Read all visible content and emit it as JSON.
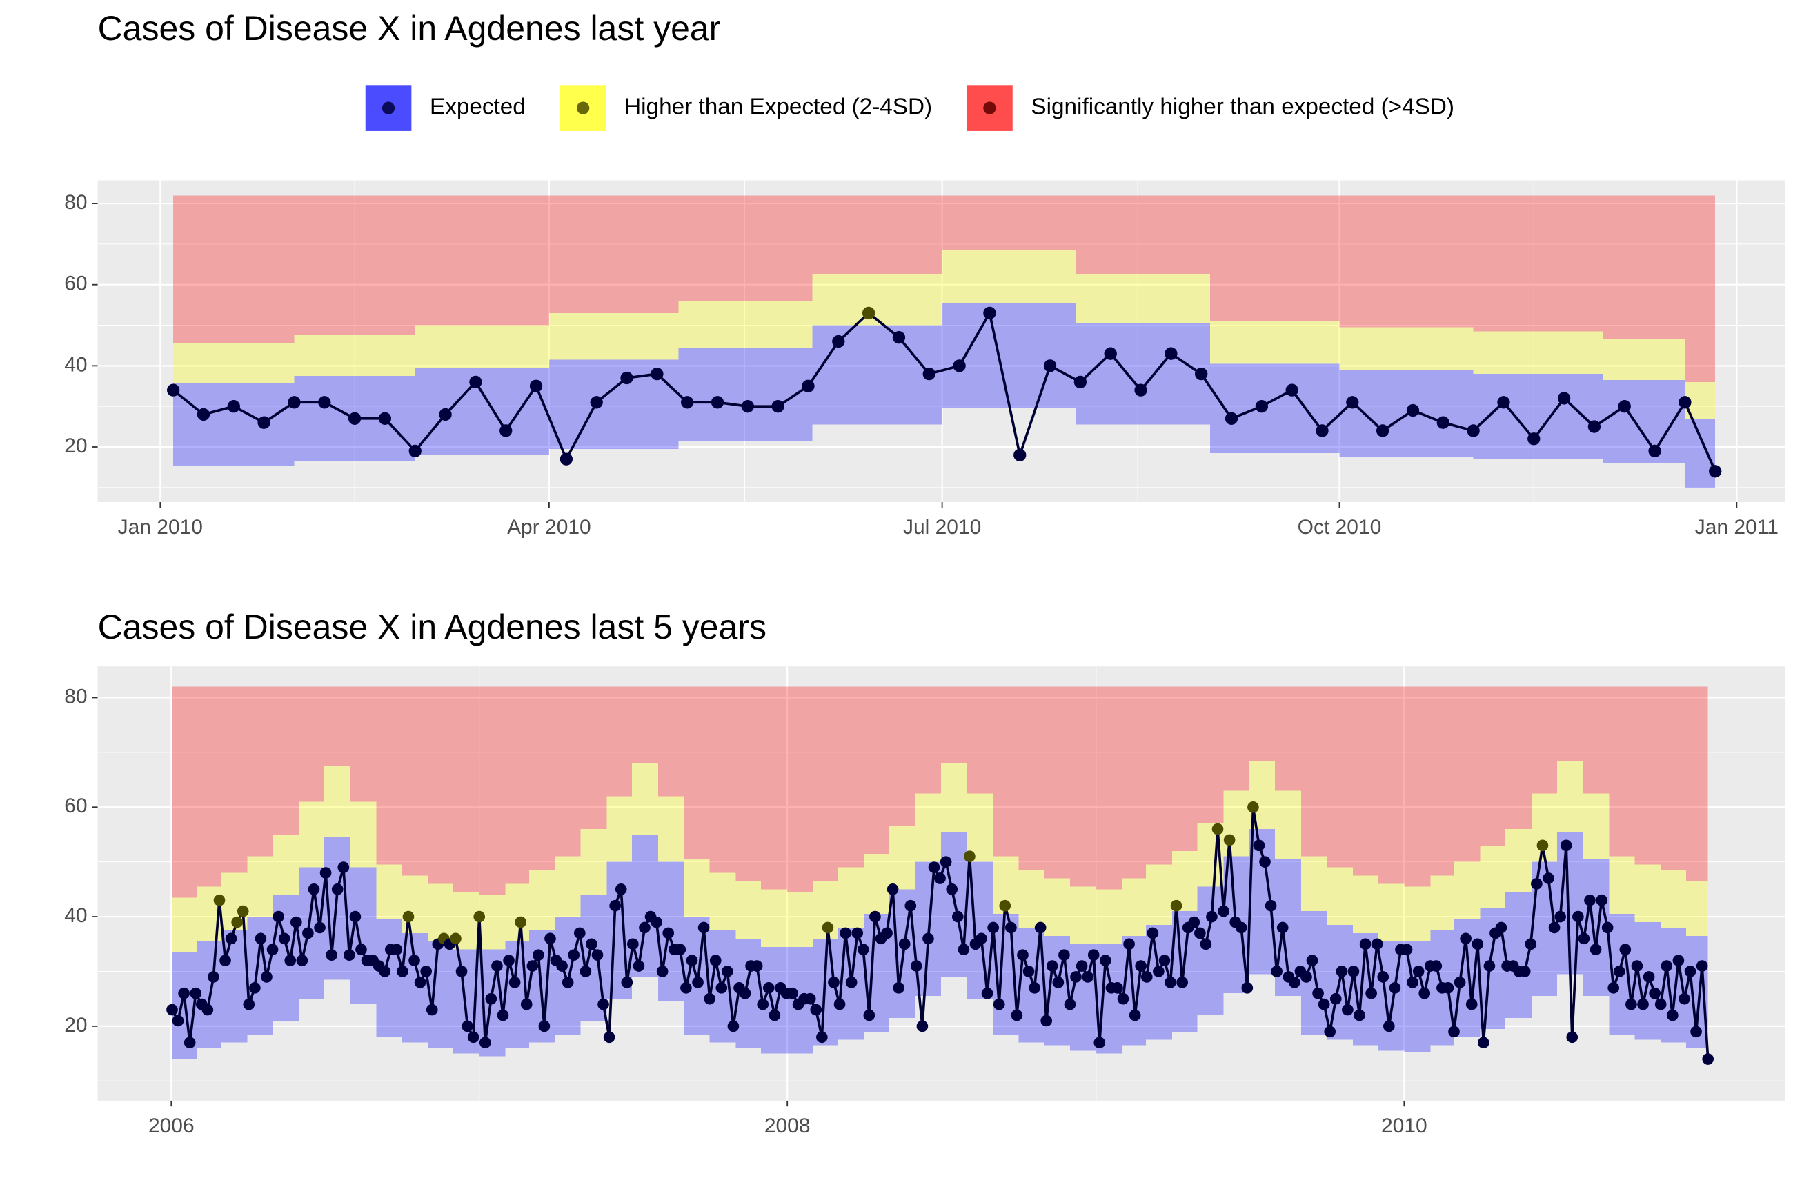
{
  "chart_data": [
    {
      "type": "line",
      "title": "Cases of Disease X in Agdenes last year",
      "legend": {
        "position": "top",
        "entries": [
          {
            "name": "Expected",
            "color": "#0000ff",
            "point_color": "#00003d"
          },
          {
            "name": "Higher than Expected (2-4SD)",
            "color": "#ffff00",
            "point_color": "#4d4d00"
          },
          {
            "name": "Significantly higher than expected (>4SD)",
            "color": "#ff0000",
            "point_color": "#5a0000"
          }
        ]
      },
      "x": [
        0,
        1,
        2,
        3,
        4,
        5,
        6,
        7,
        8,
        9,
        10,
        11,
        12,
        13,
        14,
        15,
        16,
        17,
        18,
        19,
        20,
        21,
        22,
        23,
        24,
        25,
        26,
        27,
        28,
        29,
        30,
        31,
        32,
        33,
        34,
        35,
        36,
        37,
        38,
        39,
        40,
        41,
        42,
        43,
        44,
        45,
        46,
        47,
        48,
        49,
        50,
        51
      ],
      "values": [
        34,
        28,
        30,
        26,
        31,
        31,
        27,
        27,
        19,
        28,
        36,
        24,
        35,
        17,
        31,
        37,
        38,
        31,
        31,
        30,
        30,
        35,
        46,
        53,
        47,
        38,
        40,
        53,
        18,
        40,
        36,
        43,
        34,
        43,
        38,
        27,
        30,
        34,
        24,
        31,
        24,
        29,
        26,
        24,
        31,
        22,
        32,
        25,
        30,
        19,
        31,
        14
      ],
      "line_color": "#000033",
      "band_opacity": 0.3,
      "bands": {
        "edges": [
          0,
          4.0,
          8.0,
          12.43,
          16.71,
          21.14,
          25.43,
          29.86,
          34.29,
          38.57,
          43.0,
          47.29,
          50,
          51
        ],
        "expected_low": [
          15.2,
          16.5,
          18,
          19.5,
          21.5,
          25.5,
          29.5,
          25.5,
          18.5,
          17.5,
          17,
          16,
          10
        ],
        "expected_high": [
          35.6,
          37.5,
          39.5,
          41.5,
          44.5,
          50,
          55.5,
          50.5,
          40.5,
          39,
          38,
          36.5,
          27
        ],
        "higher_high": [
          45.5,
          47.5,
          50,
          53,
          56,
          62.5,
          68.5,
          62.5,
          51,
          49.5,
          48.5,
          46.5,
          36
        ],
        "significant_high": 82
      },
      "xlim": [
        -2.5,
        53.3
      ],
      "xticks": [
        {
          "value": -0.43,
          "label": "Jan 2010"
        },
        {
          "value": 12.43,
          "label": "Apr 2010"
        },
        {
          "value": 25.43,
          "label": "Jul 2010"
        },
        {
          "value": 38.57,
          "label": "Oct 2010"
        },
        {
          "value": 51.71,
          "label": "Jan 2011"
        }
      ],
      "minor_xticks": [
        6.0,
        18.9,
        31.9,
        45.0
      ],
      "ylim": [
        6.4,
        85.7
      ],
      "yticks": [
        20,
        40,
        60,
        80
      ],
      "minor_yticks": [
        10,
        30,
        50,
        70
      ],
      "grid": true
    },
    {
      "type": "line",
      "title": "Cases of Disease X in Agdenes last 5 years",
      "x": [
        0,
        1,
        2,
        3,
        4,
        5,
        6,
        7,
        8,
        9,
        10,
        11,
        12,
        13,
        14,
        15,
        16,
        17,
        18,
        19,
        20,
        21,
        22,
        23,
        24,
        25,
        26,
        27,
        28,
        29,
        30,
        31,
        32,
        33,
        34,
        35,
        36,
        37,
        38,
        39,
        40,
        41,
        42,
        43,
        44,
        45,
        46,
        47,
        48,
        49,
        50,
        51,
        52,
        53,
        54,
        55,
        56,
        57,
        58,
        59,
        60,
        61,
        62,
        63,
        64,
        65,
        66,
        67,
        68,
        69,
        70,
        71,
        72,
        73,
        74,
        75,
        76,
        77,
        78,
        79,
        80,
        81,
        82,
        83,
        84,
        85,
        86,
        87,
        88,
        89,
        90,
        91,
        92,
        93,
        94,
        95,
        96,
        97,
        98,
        99,
        100,
        101,
        102,
        103,
        104,
        105,
        106,
        107,
        108,
        109,
        110,
        111,
        112,
        113,
        114,
        115,
        116,
        117,
        118,
        119,
        120,
        121,
        122,
        123,
        124,
        125,
        126,
        127,
        128,
        129,
        130,
        131,
        132,
        133,
        134,
        135,
        136,
        137,
        138,
        139,
        140,
        141,
        142,
        143,
        144,
        145,
        146,
        147,
        148,
        149,
        150,
        151,
        152,
        153,
        154,
        155,
        156,
        157,
        158,
        159,
        160,
        161,
        162,
        163,
        164,
        165,
        166,
        167,
        168,
        169,
        170,
        171,
        172,
        173,
        174,
        175,
        176,
        177,
        178,
        179,
        180,
        181,
        182,
        183,
        184,
        185,
        186,
        187,
        188,
        189,
        190,
        191,
        192,
        193,
        194,
        195,
        196,
        197,
        198,
        199,
        200,
        201,
        202,
        203,
        204,
        205,
        206,
        207,
        208,
        209,
        210,
        211,
        212,
        213,
        214,
        215,
        216,
        217,
        218,
        219,
        220,
        221,
        222,
        223,
        224,
        225,
        226,
        227,
        228,
        229,
        230,
        231,
        232,
        233,
        234,
        235,
        236,
        237,
        238,
        239,
        240,
        241,
        242,
        243,
        244,
        245,
        246,
        247,
        248,
        249,
        250,
        251,
        252,
        253,
        254,
        255,
        256,
        257,
        258,
        259,
        260
      ],
      "values": [
        23,
        21,
        26,
        17,
        26,
        24,
        23,
        29,
        43,
        32,
        36,
        39,
        41,
        24,
        27,
        36,
        29,
        34,
        40,
        36,
        32,
        39,
        32,
        37,
        45,
        38,
        48,
        33,
        45,
        49,
        33,
        40,
        34,
        32,
        32,
        31,
        30,
        34,
        34,
        30,
        40,
        32,
        28,
        30,
        23,
        35,
        36,
        35,
        36,
        30,
        20,
        18,
        40,
        17,
        25,
        31,
        22,
        32,
        28,
        39,
        24,
        31,
        33,
        20,
        36,
        32,
        31,
        28,
        33,
        37,
        30,
        35,
        33,
        24,
        18,
        42,
        45,
        28,
        35,
        31,
        38,
        40,
        39,
        30,
        37,
        34,
        34,
        27,
        32,
        28,
        38,
        25,
        32,
        27,
        30,
        20,
        27,
        26,
        31,
        31,
        24,
        27,
        22,
        27,
        26,
        26,
        24,
        25,
        25,
        23,
        18,
        38,
        28,
        24,
        37,
        28,
        37,
        34,
        22,
        40,
        36,
        37,
        45,
        27,
        35,
        42,
        31,
        20,
        36,
        49,
        47,
        50,
        45,
        40,
        34,
        51,
        35,
        36,
        26,
        38,
        24,
        42,
        38,
        22,
        33,
        30,
        27,
        38,
        21,
        31,
        28,
        33,
        24,
        29,
        31,
        29,
        33,
        17,
        32,
        27,
        27,
        25,
        35,
        22,
        31,
        29,
        37,
        30,
        32,
        28,
        42,
        28,
        38,
        39,
        37,
        35,
        40,
        56,
        41,
        54,
        39,
        38,
        27,
        60,
        53,
        50,
        42,
        30,
        38,
        29,
        28,
        30,
        29,
        32,
        26,
        24,
        19,
        25,
        30,
        23,
        30,
        22,
        35,
        26,
        35,
        29,
        20,
        27,
        34,
        34,
        28,
        30,
        26,
        31,
        31,
        27,
        27,
        19,
        28,
        36,
        24,
        35,
        17,
        31,
        37,
        38,
        31,
        31,
        30,
        30,
        35,
        46,
        53,
        47,
        38,
        40,
        53,
        18,
        40,
        36,
        43,
        34,
        43,
        38,
        27,
        30,
        34,
        24,
        31,
        24,
        29,
        26,
        24,
        31,
        22,
        32,
        25,
        30,
        19,
        31,
        14
      ],
      "line_color": "#000033",
      "band_opacity": 0.3,
      "bands": {
        "edges": [
          0,
          4.29,
          8.29,
          12.71,
          17,
          21.43,
          25.71,
          30.14,
          34.57,
          38.86,
          43.29,
          47.57,
          52,
          56.43,
          60.43,
          64.86,
          69.14,
          73.57,
          77.86,
          82.29,
          86.71,
          91,
          95.43,
          99.71,
          104.14,
          108.57,
          112.71,
          117.14,
          121.43,
          125.86,
          130.14,
          134.57,
          139,
          143.29,
          147.71,
          152,
          156.43,
          160.86,
          164.86,
          169.29,
          173.57,
          178,
          182.29,
          186.71,
          191.14,
          195.43,
          199.86,
          204.14,
          208.57,
          213,
          217,
          221.43,
          225.71,
          230.14,
          234.43,
          238.86,
          243.29,
          247.57,
          252,
          256.29,
          260
        ],
        "expected_low": [
          14,
          16,
          17,
          18.5,
          21,
          25,
          28.5,
          24,
          18,
          17,
          16,
          15,
          14.5,
          16,
          17,
          18.5,
          21,
          25,
          29,
          24.5,
          18.5,
          17,
          16,
          15,
          15,
          16.5,
          17.5,
          19,
          21.5,
          25.5,
          29,
          25,
          18.5,
          17,
          16.5,
          15.5,
          15,
          16.5,
          17.5,
          19,
          22,
          26,
          29.5,
          25.5,
          18.5,
          17.5,
          16.5,
          15.5,
          15.2,
          16.5,
          18,
          19.5,
          21.5,
          25.5,
          29.5,
          25.5,
          18.5,
          17.5,
          17,
          16
        ],
        "expected_high": [
          33.5,
          35.5,
          37.5,
          40,
          44,
          49,
          54.5,
          49,
          39.5,
          37,
          35.5,
          34,
          34,
          35.5,
          37.5,
          40,
          44,
          50,
          55,
          50,
          40,
          37.5,
          36,
          34.5,
          34.5,
          36,
          38,
          40.5,
          45,
          50,
          55.5,
          50,
          40.5,
          38,
          36.5,
          35,
          35,
          36.5,
          38.5,
          41,
          45.5,
          51,
          56,
          50.5,
          41,
          38.5,
          37,
          35.5,
          35.6,
          37.5,
          39.5,
          41.5,
          44.5,
          50,
          55.5,
          50.5,
          40.5,
          39,
          38,
          36.5
        ],
        "higher_high": [
          43.5,
          45.5,
          48,
          51,
          55,
          61,
          67.5,
          61,
          49.5,
          47.5,
          46,
          44.5,
          44,
          46,
          48.5,
          51,
          56,
          62,
          68,
          62,
          50.5,
          48,
          46.5,
          45,
          44.5,
          46.5,
          49,
          51.5,
          56.5,
          62.5,
          68,
          62.5,
          51,
          48.5,
          47,
          45.5,
          45,
          47,
          49.5,
          52,
          57,
          63,
          68.5,
          63,
          51,
          49,
          47.5,
          46,
          45.5,
          47.5,
          50,
          53,
          56,
          62.5,
          68.5,
          62.5,
          51,
          49.5,
          48.5,
          46.5
        ],
        "significant_high": 82
      },
      "xlim": [
        -12.6,
        273
      ],
      "xticks": [
        {
          "value": -0.14,
          "label": "2006"
        },
        {
          "value": 104.14,
          "label": "2008"
        },
        {
          "value": 208.57,
          "label": "2010"
        }
      ],
      "minor_xticks": [
        52.0,
        156.43
      ],
      "ylim": [
        6.4,
        85.7
      ],
      "yticks": [
        20,
        40,
        60,
        80
      ],
      "minor_yticks": [
        10,
        30,
        50,
        70
      ],
      "grid": true
    }
  ]
}
